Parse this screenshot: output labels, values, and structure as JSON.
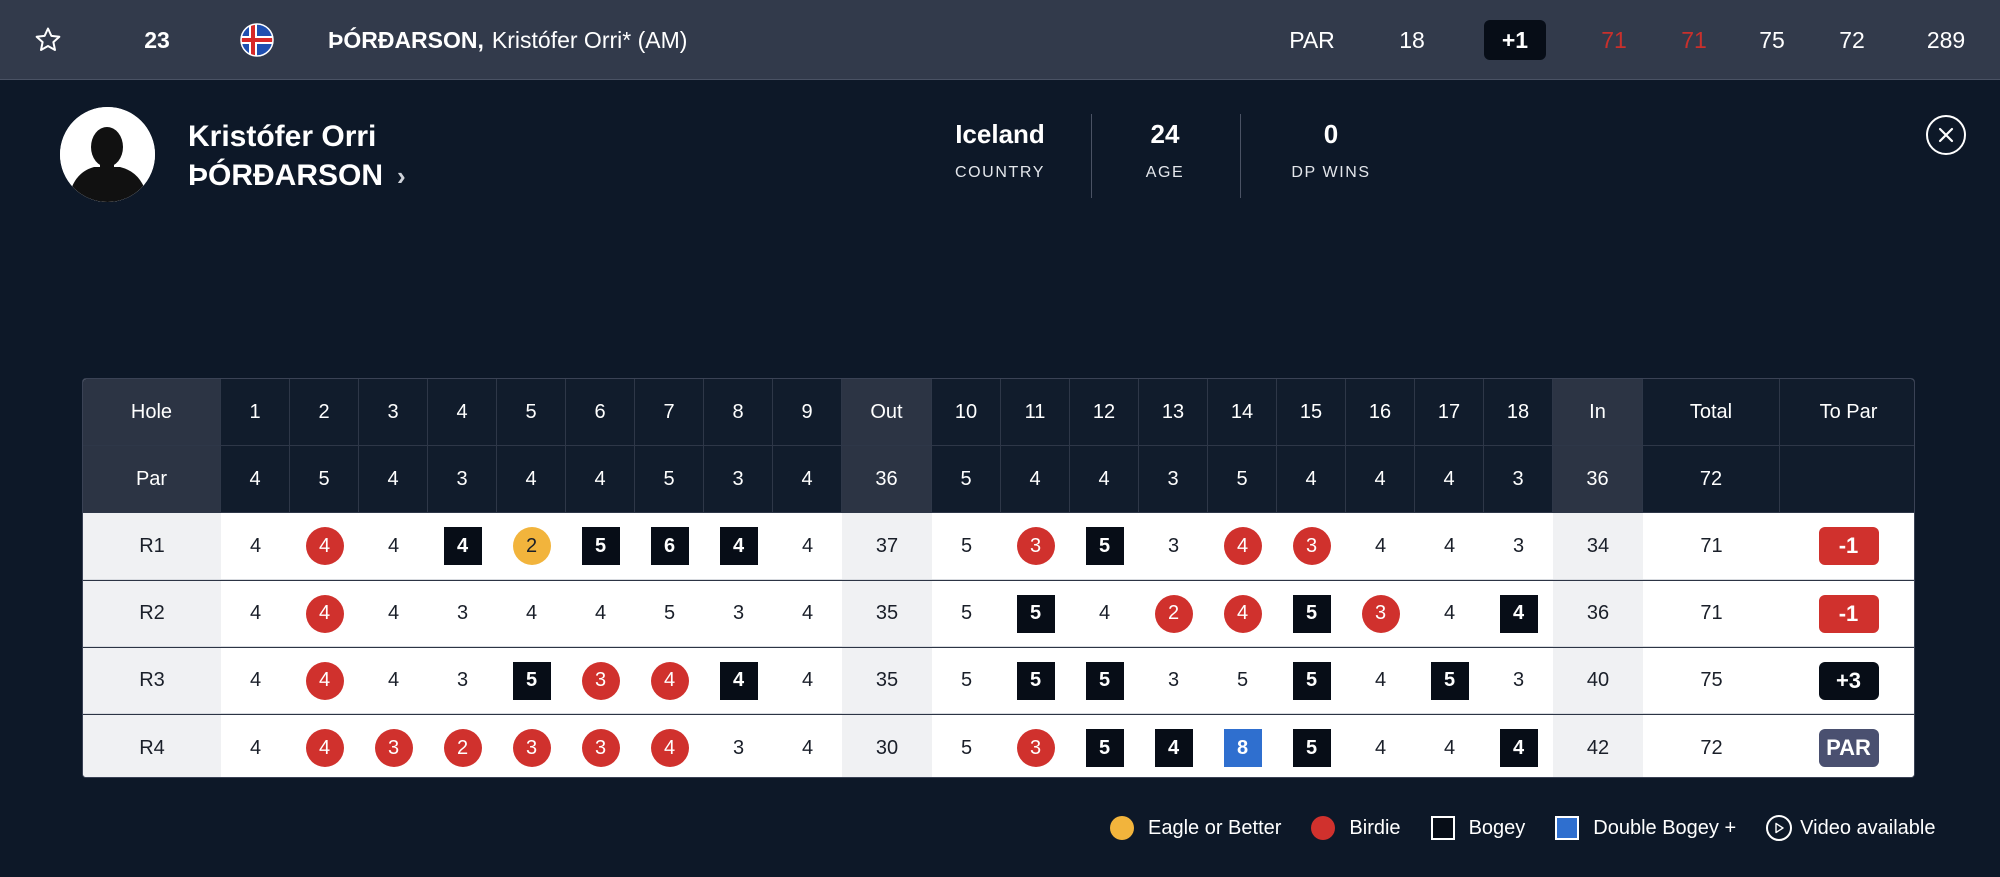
{
  "top_row": {
    "position": "23",
    "name_last": "ÞÓRÐARSON,",
    "name_first": "Kristófer Orri* (AM)",
    "thru_label": "PAR",
    "thru_value": "18",
    "to_par": "+1",
    "rounds": [
      "71",
      "71",
      "75",
      "72"
    ],
    "total": "289",
    "accent_under_par": "#c9302c"
  },
  "profile": {
    "first_name": "Kristófer Orri",
    "last_name": "ÞÓRÐARSON",
    "chevron": "›",
    "stats": {
      "country_value": "Iceland",
      "country_label": "COUNTRY",
      "age_value": "24",
      "age_label": "AGE",
      "dp_wins_value": "0",
      "dp_wins_label": "DP WINS"
    }
  },
  "scorecard": {
    "header": [
      "Hole",
      "1",
      "2",
      "3",
      "4",
      "5",
      "6",
      "7",
      "8",
      "9",
      "Out",
      "10",
      "11",
      "12",
      "13",
      "14",
      "15",
      "16",
      "17",
      "18",
      "In",
      "Total",
      "To Par"
    ],
    "par": [
      "Par",
      "4",
      "5",
      "4",
      "3",
      "4",
      "4",
      "5",
      "3",
      "4",
      "36",
      "5",
      "4",
      "4",
      "3",
      "5",
      "4",
      "4",
      "4",
      "3",
      "36",
      "72",
      ""
    ],
    "rounds": [
      {
        "label": "R1",
        "scores": [
          {
            "v": "4",
            "t": "par"
          },
          {
            "v": "4",
            "t": "birdie"
          },
          {
            "v": "4",
            "t": "par"
          },
          {
            "v": "4",
            "t": "bogey"
          },
          {
            "v": "2",
            "t": "eagle"
          },
          {
            "v": "5",
            "t": "bogey"
          },
          {
            "v": "6",
            "t": "bogey"
          },
          {
            "v": "4",
            "t": "bogey"
          },
          {
            "v": "4",
            "t": "par"
          }
        ],
        "out": "37",
        "back": [
          {
            "v": "5",
            "t": "par"
          },
          {
            "v": "3",
            "t": "birdie"
          },
          {
            "v": "5",
            "t": "bogey"
          },
          {
            "v": "3",
            "t": "par"
          },
          {
            "v": "4",
            "t": "birdie"
          },
          {
            "v": "3",
            "t": "birdie"
          },
          {
            "v": "4",
            "t": "par"
          },
          {
            "v": "4",
            "t": "par"
          },
          {
            "v": "3",
            "t": "par"
          }
        ],
        "in": "34",
        "total": "71",
        "to_par": "-1",
        "to_par_type": "under"
      },
      {
        "label": "R2",
        "scores": [
          {
            "v": "4",
            "t": "par"
          },
          {
            "v": "4",
            "t": "birdie"
          },
          {
            "v": "4",
            "t": "par"
          },
          {
            "v": "3",
            "t": "par"
          },
          {
            "v": "4",
            "t": "par"
          },
          {
            "v": "4",
            "t": "par"
          },
          {
            "v": "5",
            "t": "par"
          },
          {
            "v": "3",
            "t": "par"
          },
          {
            "v": "4",
            "t": "par"
          }
        ],
        "out": "35",
        "back": [
          {
            "v": "5",
            "t": "par"
          },
          {
            "v": "5",
            "t": "bogey"
          },
          {
            "v": "4",
            "t": "par"
          },
          {
            "v": "2",
            "t": "birdie"
          },
          {
            "v": "4",
            "t": "birdie"
          },
          {
            "v": "5",
            "t": "bogey"
          },
          {
            "v": "3",
            "t": "birdie"
          },
          {
            "v": "4",
            "t": "par"
          },
          {
            "v": "4",
            "t": "bogey"
          }
        ],
        "in": "36",
        "total": "71",
        "to_par": "-1",
        "to_par_type": "under"
      },
      {
        "label": "R3",
        "scores": [
          {
            "v": "4",
            "t": "par"
          },
          {
            "v": "4",
            "t": "birdie"
          },
          {
            "v": "4",
            "t": "par"
          },
          {
            "v": "3",
            "t": "par"
          },
          {
            "v": "5",
            "t": "bogey"
          },
          {
            "v": "3",
            "t": "birdie"
          },
          {
            "v": "4",
            "t": "birdie"
          },
          {
            "v": "4",
            "t": "bogey"
          },
          {
            "v": "4",
            "t": "par"
          }
        ],
        "out": "35",
        "back": [
          {
            "v": "5",
            "t": "par"
          },
          {
            "v": "5",
            "t": "bogey"
          },
          {
            "v": "5",
            "t": "bogey"
          },
          {
            "v": "3",
            "t": "par"
          },
          {
            "v": "5",
            "t": "par"
          },
          {
            "v": "5",
            "t": "bogey"
          },
          {
            "v": "4",
            "t": "par"
          },
          {
            "v": "5",
            "t": "bogey"
          },
          {
            "v": "3",
            "t": "par"
          }
        ],
        "in": "40",
        "total": "75",
        "to_par": "+3",
        "to_par_type": "over"
      },
      {
        "label": "R4",
        "scores": [
          {
            "v": "4",
            "t": "par"
          },
          {
            "v": "4",
            "t": "birdie"
          },
          {
            "v": "3",
            "t": "birdie"
          },
          {
            "v": "2",
            "t": "birdie"
          },
          {
            "v": "3",
            "t": "birdie"
          },
          {
            "v": "3",
            "t": "birdie"
          },
          {
            "v": "4",
            "t": "birdie"
          },
          {
            "v": "3",
            "t": "par"
          },
          {
            "v": "4",
            "t": "par"
          }
        ],
        "out": "30",
        "back": [
          {
            "v": "5",
            "t": "par"
          },
          {
            "v": "3",
            "t": "birdie"
          },
          {
            "v": "5",
            "t": "bogey"
          },
          {
            "v": "4",
            "t": "bogey"
          },
          {
            "v": "8",
            "t": "double"
          },
          {
            "v": "5",
            "t": "bogey"
          },
          {
            "v": "4",
            "t": "par"
          },
          {
            "v": "4",
            "t": "par"
          },
          {
            "v": "4",
            "t": "bogey"
          }
        ],
        "in": "42",
        "total": "72",
        "to_par": "PAR",
        "to_par_type": "par"
      }
    ]
  },
  "legend": {
    "eagle": "Eagle or Better",
    "birdie": "Birdie",
    "bogey": "Bogey",
    "double": "Double Bogey +",
    "video": "Video available"
  }
}
